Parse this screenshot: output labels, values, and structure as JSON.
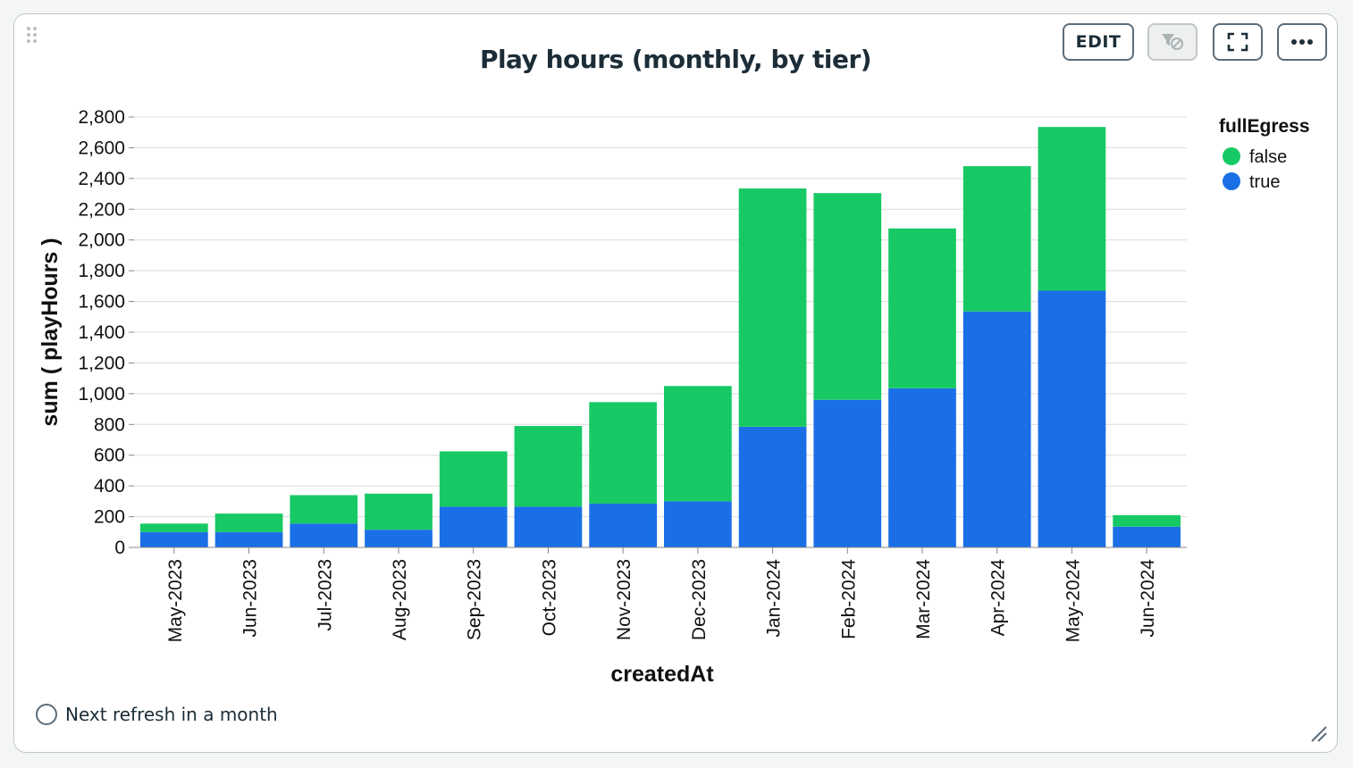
{
  "card": {
    "title": "Play hours (monthly, by tier)",
    "buttons": {
      "edit_label": "EDIT"
    },
    "icons": [
      "drag-handle-icon",
      "filter-off-icon",
      "fullscreen-icon",
      "more-icon",
      "refresh-icon",
      "resize-icon"
    ],
    "refresh_text": "Next refresh in a month"
  },
  "colors": {
    "false": "#17c964",
    "true": "#1a6fe6",
    "grid": "#dcdcdc",
    "axis": "#888888"
  },
  "chart_data": {
    "type": "bar",
    "stacked": true,
    "title": "Play hours (monthly, by tier)",
    "xlabel": "createdAt",
    "ylabel": "sum ( playHours )",
    "ylim": [
      0,
      2800
    ],
    "yticks": [
      0,
      200,
      400,
      600,
      800,
      1000,
      1200,
      1400,
      1600,
      1800,
      2000,
      2200,
      2400,
      2600,
      2800
    ],
    "legend": {
      "title": "fullEgress",
      "position": "right"
    },
    "grid": true,
    "categories": [
      "May-2023",
      "Jun-2023",
      "Jul-2023",
      "Aug-2023",
      "Sep-2023",
      "Oct-2023",
      "Nov-2023",
      "Dec-2023",
      "Jan-2024",
      "Feb-2024",
      "Mar-2024",
      "Apr-2024",
      "May-2024",
      "Jun-2024"
    ],
    "series": [
      {
        "name": "true",
        "values": [
          100,
          100,
          155,
          115,
          265,
          265,
          285,
          300,
          785,
          960,
          1035,
          1535,
          1670,
          135
        ]
      },
      {
        "name": "false",
        "values": [
          55,
          120,
          185,
          235,
          360,
          525,
          660,
          750,
          1550,
          1345,
          1040,
          945,
          1065,
          75
        ]
      }
    ]
  }
}
